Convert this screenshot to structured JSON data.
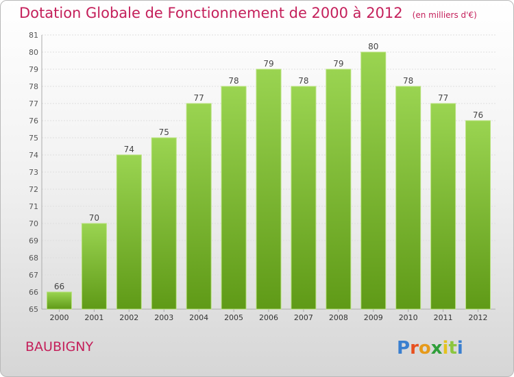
{
  "header": {
    "title": "Dotation Globale de Fonctionnement de 2000 à 2012",
    "subtitle": "(en milliers d'€)"
  },
  "footer": {
    "commune": "BAUBIGNY",
    "logo_text": "Proxiti"
  },
  "colors": {
    "accent": "#c41f5a",
    "bar_top": "#9ad451",
    "bar_bottom": "#5f9a17"
  },
  "chart_data": {
    "type": "bar",
    "categories": [
      "2000",
      "2001",
      "2002",
      "2003",
      "2004",
      "2005",
      "2006",
      "2007",
      "2008",
      "2009",
      "2010",
      "2011",
      "2012"
    ],
    "values": [
      66,
      70,
      74,
      75,
      77,
      78,
      79,
      78,
      79,
      80,
      78,
      77,
      76
    ],
    "ylim": [
      65,
      81
    ],
    "yticks": [
      65,
      66,
      67,
      68,
      69,
      70,
      71,
      72,
      73,
      74,
      75,
      76,
      77,
      78,
      79,
      80,
      81
    ],
    "grid": true,
    "data_labels": true
  }
}
